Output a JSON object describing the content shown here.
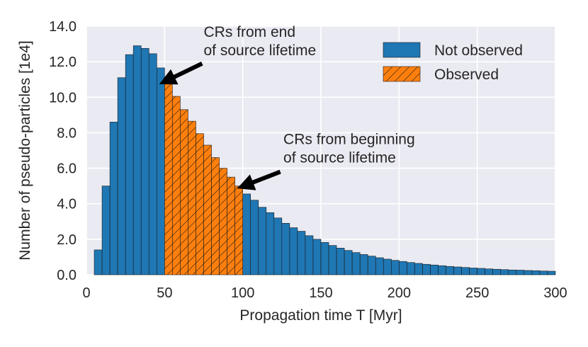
{
  "chart_data": {
    "type": "bar",
    "xlabel": "Propagation time T [Myr]",
    "ylabel": "Number of pseudo-particles [1e4]",
    "xlim": [
      0,
      300
    ],
    "ylim": [
      0,
      14
    ],
    "xticks": [
      "0",
      "50",
      "100",
      "150",
      "200",
      "250",
      "300"
    ],
    "yticks": [
      "0.0",
      "2.0",
      "4.0",
      "6.0",
      "8.0",
      "10.0",
      "12.0",
      "14.0"
    ],
    "grid": true,
    "legend_position": "top-right",
    "bin_width": 5,
    "series": [
      {
        "name": "Not observed",
        "color": "#1f77b4",
        "hatch": "none",
        "bins_start": [
          5,
          10,
          15,
          20,
          25,
          30,
          35,
          40,
          45,
          100,
          105,
          110,
          115,
          120,
          125,
          130,
          135,
          140,
          145,
          150,
          155,
          160,
          165,
          170,
          175,
          180,
          185,
          190,
          195,
          200,
          205,
          210,
          215,
          220,
          225,
          230,
          235,
          240,
          245,
          250,
          255,
          260,
          265,
          270,
          275,
          280,
          285,
          290,
          295
        ],
        "values": [
          1.4,
          5.0,
          8.6,
          11.1,
          12.4,
          12.9,
          12.75,
          12.45,
          11.65,
          4.55,
          4.2,
          3.8,
          3.5,
          3.2,
          2.9,
          2.65,
          2.45,
          2.2,
          2.0,
          1.82,
          1.65,
          1.5,
          1.37,
          1.25,
          1.14,
          1.05,
          0.96,
          0.88,
          0.81,
          0.75,
          0.69,
          0.64,
          0.59,
          0.55,
          0.51,
          0.47,
          0.44,
          0.41,
          0.38,
          0.36,
          0.33,
          0.31,
          0.29,
          0.27,
          0.26,
          0.24,
          0.23,
          0.21,
          0.2
        ]
      },
      {
        "name": "Observed",
        "color": "#ff7f0e",
        "hatch": "diagonal",
        "bins_start": [
          50,
          55,
          60,
          65,
          70,
          75,
          80,
          85,
          90,
          95
        ],
        "values": [
          10.9,
          10.05,
          9.3,
          8.65,
          7.95,
          7.3,
          6.6,
          6.0,
          5.5,
          5.0
        ]
      }
    ],
    "annotations": [
      {
        "id": "end",
        "lines": [
          "CRs from end",
          "of source lifetime"
        ],
        "arrow_to": [
          50.5,
          10.9
        ],
        "arrow_from": [
          74,
          11.9
        ],
        "text_at": [
          75,
          13.4
        ]
      },
      {
        "id": "begin",
        "lines": [
          "CRs from beginning",
          "of source lifetime"
        ],
        "arrow_to": [
          100.5,
          5.0
        ],
        "arrow_from": [
          124,
          5.8
        ],
        "text_at": [
          126,
          7.35
        ]
      }
    ]
  }
}
